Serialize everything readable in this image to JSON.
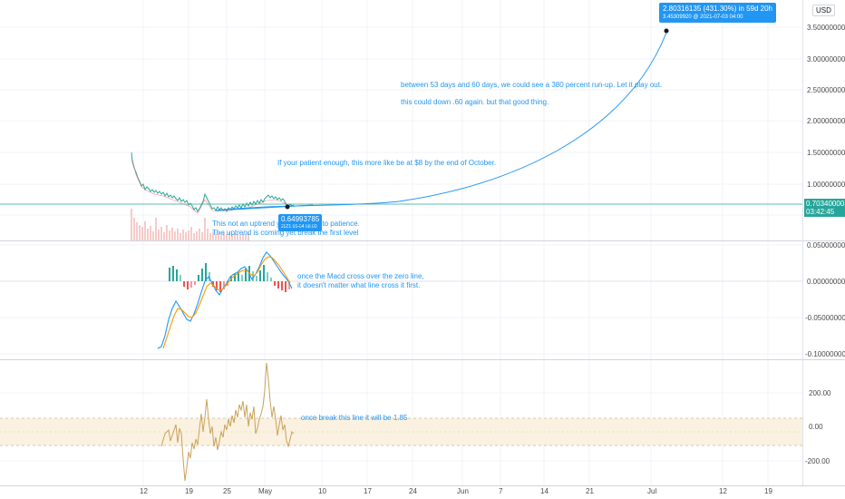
{
  "currency": "USD",
  "price_axis": [
    "3.50000000",
    "3.00000000",
    "2.50000000",
    "2.00000000",
    "1.50000000",
    "1.00000000"
  ],
  "current_price": "0.70340000",
  "countdown": "03:42:45",
  "macd_axis": [
    "0.05000000",
    "0.00000000",
    "-0.05000000",
    "-0.10000000"
  ],
  "cci_axis": [
    "200.00",
    "0.00",
    "-200.00"
  ],
  "time_axis": [
    "12",
    "19",
    "25",
    "May",
    "10",
    "17",
    "24",
    "Jun",
    "7",
    "14",
    "21",
    "Jul",
    "12",
    "19"
  ],
  "projection": {
    "headline": "2.80316135 (431.30%) in 59d 20h",
    "detail": "3.45309920 @ 2021-07-03  04:00"
  },
  "anchor": {
    "price": "0.64993785",
    "date": "2021-05-04 08:00"
  },
  "notes": {
    "runup": "between 53 days and 60 days, we could see a 380 percent run-up. Let it play out.",
    "down": "this could down .60 again. but that good thing.",
    "october": "If your patient enough, this more like be at $8 by the end of October.",
    "uptrend_1": "This not an uptrend yet, you need to patience.",
    "uptrend_2": "The uptrend is coming yet break the first level",
    "macd_1": "once the Macd cross over the zero line,",
    "macd_2": "it doesn't matter what line cross it first.",
    "cci": "once break this line it will be 1.85"
  },
  "colors": {
    "accent": "#2196f3",
    "price_line": "#26a69a",
    "macd_line": "#2196f3",
    "signal_line": "#ff9800",
    "hist_up": "#26a69a",
    "hist_down": "#ef5350",
    "cci_line": "#c8a25a",
    "cci_band": "#fbf1e0"
  }
}
